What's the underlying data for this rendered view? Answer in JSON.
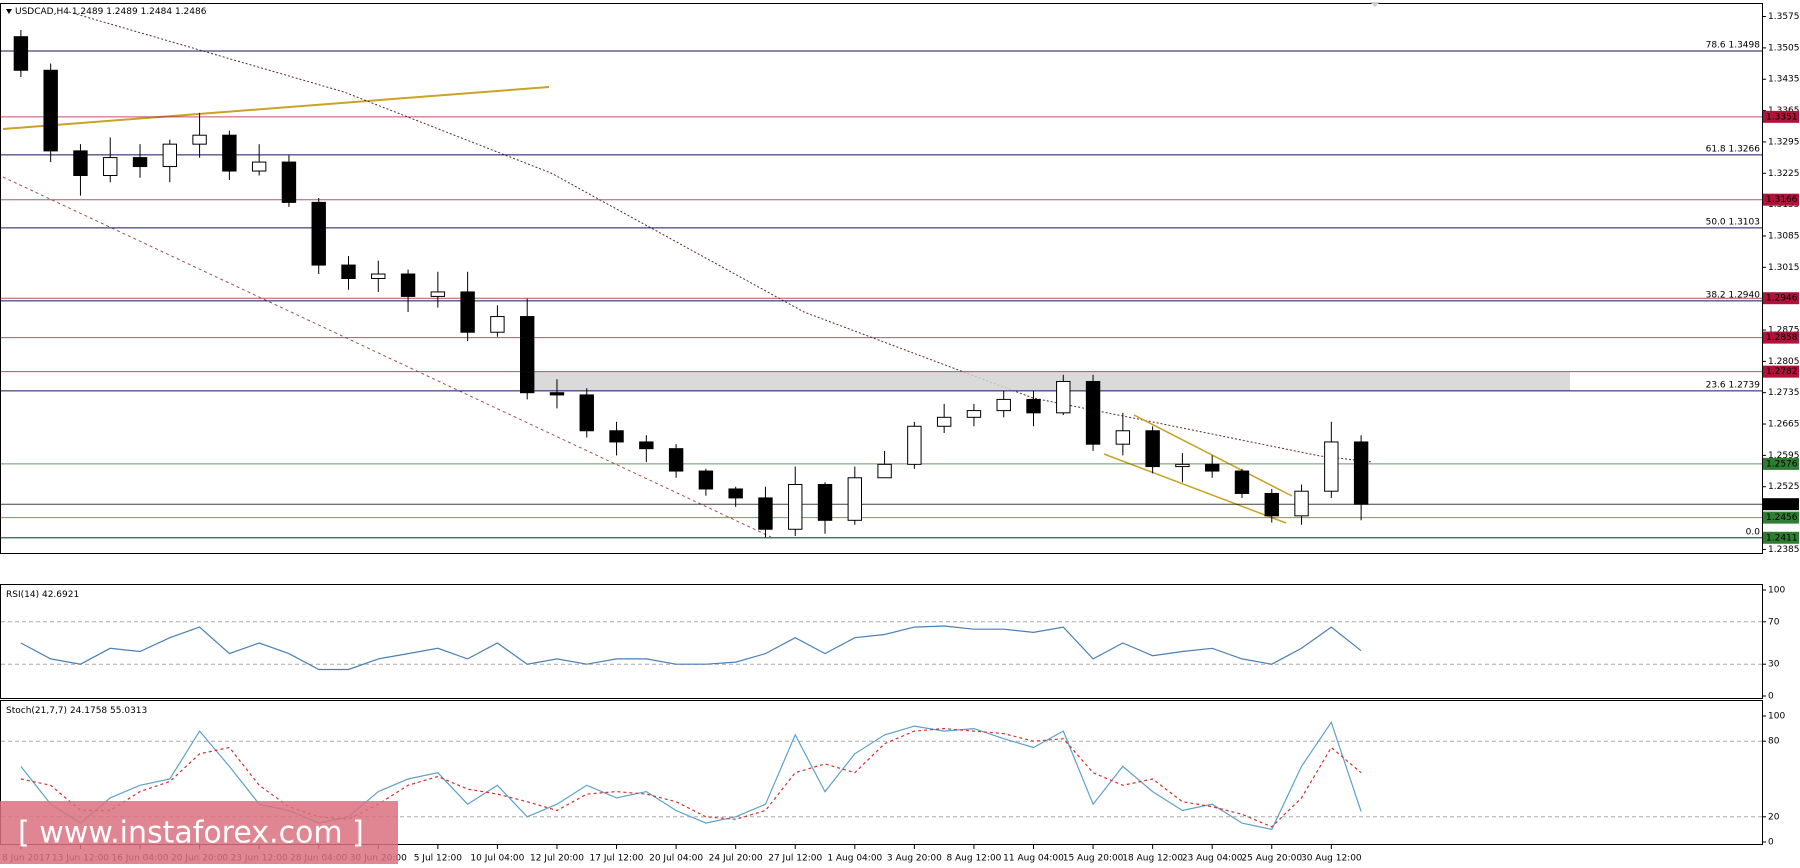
{
  "chart_data": {
    "type": "candlestick",
    "symbol": "USDCAD,H4",
    "header_values": [
      1.2489,
      1.2489,
      1.2484,
      1.2486
    ],
    "categories": [
      "8 Jun 2017",
      null,
      "13 Jun 12:00",
      null,
      "16 Jun 04:00",
      null,
      "20 Jun 20:00",
      null,
      "23 Jun 12:00",
      null,
      "28 Jun 04:00",
      null,
      "30 Jun 20:00",
      null,
      "5 Jul 12:00",
      null,
      "10 Jul 04:00",
      null,
      "12 Jul 20:00",
      null,
      "17 Jul 12:00",
      null,
      "20 Jul 04:00",
      null,
      "24 Jul 20:00",
      null,
      "27 Jul 12:00",
      null,
      "1 Aug 04:00",
      null,
      "3 Aug 20:00",
      null,
      "8 Aug 12:00",
      null,
      "11 Aug 04:00",
      null,
      "15 Aug 20:00",
      null,
      "18 Aug 12:00",
      null,
      "23 Aug 04:00",
      null,
      "25 Aug 20:00",
      null,
      "30 Aug 12:00",
      null
    ],
    "open": [
      1.353,
      1.3455,
      1.3275,
      1.322,
      1.326,
      1.324,
      1.329,
      1.331,
      1.323,
      1.325,
      1.316,
      1.302,
      1.299,
      1.3,
      1.295,
      1.296,
      1.287,
      1.2905,
      1.2735,
      1.273,
      1.265,
      1.2625,
      1.261,
      1.256,
      1.252,
      1.25,
      1.243,
      1.253,
      1.245,
      1.2545,
      1.2575,
      1.266,
      1.268,
      1.2695,
      1.272,
      1.269,
      1.276,
      1.262,
      1.265,
      1.257,
      1.2575,
      1.256,
      1.251,
      1.246,
      1.2515,
      1.2625
    ],
    "high": [
      1.3545,
      1.347,
      1.329,
      1.3305,
      1.329,
      1.33,
      1.336,
      1.332,
      1.329,
      1.3265,
      1.317,
      1.304,
      1.303,
      1.301,
      1.3005,
      1.3005,
      1.293,
      1.2945,
      1.2765,
      1.2745,
      1.267,
      1.264,
      1.262,
      1.2565,
      1.2525,
      1.2525,
      1.257,
      1.2535,
      1.257,
      1.2605,
      1.267,
      1.271,
      1.271,
      1.274,
      1.274,
      1.2775,
      1.2775,
      1.269,
      1.266,
      1.26,
      1.2595,
      1.2565,
      1.252,
      1.253,
      1.267,
      1.264
    ],
    "low": [
      1.344,
      1.325,
      1.3175,
      1.3205,
      1.3215,
      1.3205,
      1.326,
      1.321,
      1.322,
      1.315,
      1.3,
      1.2965,
      1.296,
      1.2915,
      1.2925,
      1.285,
      1.286,
      1.272,
      1.27,
      1.2635,
      1.2595,
      1.258,
      1.2545,
      1.2505,
      1.248,
      1.2412,
      1.2415,
      1.242,
      1.244,
      1.2545,
      1.2565,
      1.2645,
      1.266,
      1.268,
      1.266,
      1.2685,
      1.2605,
      1.2595,
      1.2555,
      1.2535,
      1.2545,
      1.25,
      1.2445,
      1.244,
      1.25,
      1.245
    ],
    "close": [
      1.3455,
      1.3275,
      1.322,
      1.326,
      1.324,
      1.329,
      1.331,
      1.323,
      1.325,
      1.316,
      1.302,
      1.299,
      1.3,
      1.295,
      1.296,
      1.287,
      1.2905,
      1.2735,
      1.273,
      1.265,
      1.2625,
      1.261,
      1.256,
      1.252,
      1.25,
      1.243,
      1.253,
      1.245,
      1.2545,
      1.2575,
      1.266,
      1.268,
      1.2695,
      1.272,
      1.269,
      1.276,
      1.262,
      1.265,
      1.257,
      1.2575,
      1.256,
      1.251,
      1.246,
      1.2515,
      1.2625,
      1.2486
    ],
    "up_color": "#ffffff",
    "down_color": "#000000",
    "ylim": [
      1.2377,
      1.3603
    ],
    "yticks": [
      1.3575,
      1.3505,
      1.3435,
      1.3365,
      1.3295,
      1.3225,
      1.3155,
      1.3085,
      1.3015,
      1.2945,
      1.2875,
      1.2805,
      1.2735,
      1.2665,
      1.2595,
      1.2525,
      1.2455,
      1.2385
    ],
    "fib_color": "#14145a",
    "fib_levels": [
      {
        "label": "78.6 1.3498",
        "price": 1.3498
      },
      {
        "label": "61.8 1.3266",
        "price": 1.3266
      },
      {
        "label": "50.0 1.3103",
        "price": 1.3103
      },
      {
        "label": "38.2 1.2940",
        "price": 1.294
      },
      {
        "label": "23.6 1.2739",
        "price": 1.2739
      },
      {
        "label": "0.0",
        "price": 1.2411
      }
    ],
    "price_tags": [
      {
        "value": 1.3351,
        "color": "#b0123a"
      },
      {
        "value": 1.3166,
        "color": "#b0123a"
      },
      {
        "value": 1.2946,
        "color": "#b0123a"
      },
      {
        "value": 1.2858,
        "color": "#b0123a"
      },
      {
        "value": 1.2782,
        "color": "#b0123a"
      },
      {
        "value": 1.2576,
        "color": "#2e7d32"
      },
      {
        "value": 1.2486,
        "color": "#000000"
      },
      {
        "value": 1.2456,
        "color": "#2e7d32"
      },
      {
        "value": 1.2411,
        "color": "#2e7d32"
      }
    ],
    "indicators": [
      {
        "type": "line",
        "title": "RSI(14)",
        "readings": [
          42.6921
        ],
        "ylim": [
          0,
          100
        ],
        "yticks": [
          0,
          30,
          70,
          100
        ],
        "series": [
          {
            "color": "#4a7fb5",
            "values": [
              50,
              35,
              30,
              45,
              42,
              55,
              65,
              40,
              50,
              40,
              25,
              25,
              35,
              40,
              45,
              35,
              50,
              30,
              35,
              30,
              35,
              35,
              30,
              30,
              32,
              40,
              55,
              40,
              55,
              58,
              65,
              66,
              63,
              63,
              60,
              65,
              35,
              50,
              38,
              42,
              45,
              35,
              30,
              45,
              65,
              42.6921
            ]
          }
        ]
      },
      {
        "type": "line",
        "title": "Stoch(21,7,7)",
        "readings": [
          24.1758,
          55.0313
        ],
        "ylim": [
          0,
          100
        ],
        "yticks": [
          0,
          20,
          80,
          100
        ],
        "series": [
          {
            "color": "#5fa0c8",
            "values": [
              60,
              30,
              15,
              35,
              45,
              50,
              88,
              60,
              30,
              25,
              15,
              20,
              40,
              50,
              55,
              30,
              45,
              20,
              30,
              45,
              35,
              40,
              25,
              15,
              20,
              30,
              85,
              40,
              70,
              85,
              92,
              88,
              90,
              82,
              75,
              88,
              30,
              60,
              40,
              25,
              30,
              15,
              10,
              60,
              95,
              24.1758
            ]
          },
          {
            "color": "#d0312d",
            "dashed": true,
            "values": [
              50,
              45,
              25,
              25,
              40,
              48,
              70,
              75,
              45,
              28,
              20,
              18,
              30,
              45,
              52,
              42,
              38,
              32,
              25,
              38,
              40,
              38,
              32,
              20,
              18,
              25,
              55,
              62,
              55,
              78,
              88,
              90,
              88,
              86,
              80,
              82,
              55,
              45,
              50,
              32,
              28,
              22,
              12,
              35,
              75,
              55.0313
            ]
          }
        ]
      }
    ],
    "watermark": "[ www.instaforex.com ]"
  }
}
